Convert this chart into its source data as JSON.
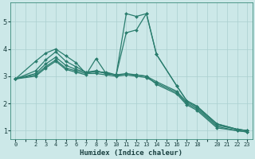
{
  "xlabel": "Humidex (Indice chaleur)",
  "ylabel": "",
  "bg_color": "#cce8e8",
  "line_color": "#2a7d6e",
  "grid_color": "#aacfcf",
  "xlim": [
    -0.5,
    23.5
  ],
  "ylim": [
    0.7,
    5.7
  ],
  "xticks": [
    0,
    2,
    3,
    4,
    5,
    6,
    7,
    8,
    9,
    10,
    11,
    12,
    13,
    14,
    15,
    16,
    17,
    18,
    20,
    21,
    22,
    23
  ],
  "yticks": [
    1,
    2,
    3,
    4,
    5
  ],
  "lines": [
    {
      "x": [
        0,
        2,
        3,
        4,
        5,
        6,
        7,
        8,
        9,
        10,
        11,
        12,
        13,
        14,
        16,
        17,
        18,
        20,
        22,
        23
      ],
      "y": [
        2.9,
        3.55,
        3.85,
        4.0,
        3.75,
        3.5,
        3.1,
        3.2,
        3.1,
        3.05,
        5.3,
        5.2,
        5.3,
        3.8,
        2.65,
        2.1,
        1.9,
        1.25,
        1.05,
        1.0
      ]
    },
    {
      "x": [
        0,
        2,
        3,
        4,
        5,
        6,
        7,
        8,
        9,
        10,
        11,
        12,
        13,
        14,
        16,
        17,
        18,
        20,
        22,
        23
      ],
      "y": [
        2.9,
        3.2,
        3.6,
        3.9,
        3.55,
        3.35,
        3.15,
        3.15,
        3.15,
        3.05,
        4.6,
        4.7,
        5.3,
        3.8,
        2.65,
        2.1,
        1.9,
        1.25,
        1.05,
        1.0
      ]
    },
    {
      "x": [
        0,
        2,
        3,
        4,
        5,
        6,
        7,
        8,
        9,
        10,
        11,
        12,
        13,
        14,
        16,
        17,
        18,
        20,
        22,
        23
      ],
      "y": [
        2.9,
        3.1,
        3.45,
        3.7,
        3.4,
        3.25,
        3.15,
        3.2,
        3.1,
        3.05,
        3.1,
        3.05,
        3.0,
        2.8,
        2.45,
        2.05,
        1.85,
        1.2,
        1.05,
        1.0
      ]
    },
    {
      "x": [
        0,
        2,
        3,
        4,
        5,
        6,
        7,
        8,
        9,
        10,
        11,
        12,
        13,
        14,
        16,
        17,
        18,
        20,
        22,
        23
      ],
      "y": [
        2.9,
        3.05,
        3.35,
        3.6,
        3.3,
        3.2,
        3.1,
        3.1,
        3.05,
        3.0,
        3.05,
        3.0,
        2.95,
        2.75,
        2.4,
        2.0,
        1.8,
        1.15,
        1.0,
        0.95
      ]
    },
    {
      "x": [
        0,
        2,
        3,
        4,
        5,
        6,
        7,
        8,
        9,
        10,
        11,
        12,
        13,
        14,
        16,
        17,
        18,
        20,
        22,
        23
      ],
      "y": [
        2.9,
        3.0,
        3.3,
        3.55,
        3.25,
        3.15,
        3.05,
        3.65,
        3.1,
        3.05,
        3.05,
        3.05,
        3.0,
        2.7,
        2.35,
        1.95,
        1.75,
        1.1,
        1.0,
        0.95
      ]
    }
  ]
}
